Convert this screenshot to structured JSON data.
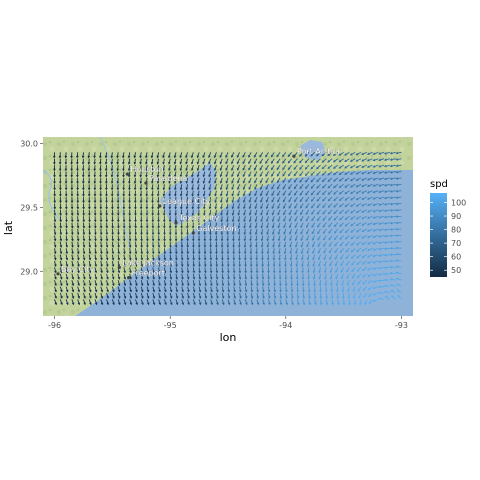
{
  "chart_data": {
    "type": "vector field map (wind speed quiver)",
    "xlabel": "lon",
    "ylabel": "lat",
    "xlim": [
      -96.1,
      -92.9
    ],
    "ylim": [
      28.65,
      30.05
    ],
    "x_ticks": [
      -96,
      -95,
      -94,
      -93
    ],
    "x_tick_labels": [
      "-96",
      "-95",
      "-94",
      "-93"
    ],
    "y_ticks": [
      29.0,
      29.5,
      30.0
    ],
    "y_tick_labels": [
      "29.0",
      "29.5",
      "30.0"
    ],
    "legend": {
      "title": "spd",
      "ticks": [
        50,
        60,
        70,
        80,
        90,
        100
      ],
      "range": [
        45,
        107
      ],
      "color_low": "#132b43",
      "color_high": "#56b1f7",
      "placement": "right"
    },
    "grid": {
      "lon_start": -96.0,
      "lon_end": -93.0,
      "lat_start": 28.78,
      "lat_end": 29.97,
      "lon_step": 0.05,
      "lat_step": 0.05
    },
    "wind_field": {
      "center_lon": -93.2,
      "center_lat": 28.7,
      "max_speed": 106,
      "min_speed": 45,
      "decay_radius_deg": 1.8
    },
    "places": [
      {
        "name": "Houston",
        "lon": -95.37,
        "lat": 29.76
      },
      {
        "name": "Pasadena",
        "lon": -95.21,
        "lat": 29.69
      },
      {
        "name": "Port Arthur",
        "lon": -93.93,
        "lat": 29.9
      },
      {
        "name": "League City",
        "lon": -95.09,
        "lat": 29.51
      },
      {
        "name": "Texas City",
        "lon": -94.95,
        "lat": 29.38
      },
      {
        "name": "Galveston",
        "lon": -94.8,
        "lat": 29.3
      },
      {
        "name": "Lake Jackson",
        "lon": -95.44,
        "lat": 29.03
      },
      {
        "name": "Freeport",
        "lon": -95.36,
        "lat": 28.95
      },
      {
        "name": "Bay City",
        "lon": -95.97,
        "lat": 28.98
      }
    ]
  },
  "colors": {
    "land_light": "#c6d6a0",
    "land_mid": "#a9c08a",
    "land_dark": "#8fae74",
    "water": "#8fb3d9",
    "water_deep": "#7fa8d6",
    "bay": "#9cbde0",
    "border": "#b0b0b0"
  }
}
